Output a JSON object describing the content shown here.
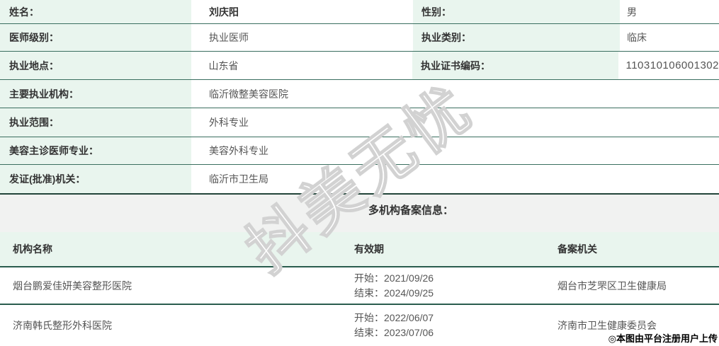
{
  "info": {
    "paired_rows": [
      {
        "label1": "姓名：",
        "value1": "刘庆阳",
        "label2": "性别：",
        "value2": "男"
      },
      {
        "label1": "医师级别：",
        "value1": "执业医师",
        "label2": "执业类别：",
        "value2": "临床"
      },
      {
        "label1": "执业地点：",
        "value1": "山东省",
        "label2": "执业证书编码：",
        "value2": "110310106001302"
      }
    ],
    "single_rows": [
      {
        "label": "主要执业机构：",
        "value": "临沂微整美容医院"
      },
      {
        "label": "执业范围：",
        "value": "外科专业"
      },
      {
        "label": "美容主诊医师专业：",
        "value": "美容外科专业"
      },
      {
        "label": "发证(批准)机关：",
        "value": "临沂市卫生局"
      }
    ]
  },
  "section": {
    "title": "多机构备案信息："
  },
  "records_table": {
    "headers": {
      "org": "机构名称",
      "validity": "有效期",
      "authority": "备案机关"
    },
    "rows": [
      {
        "org": "烟台鹏爱佳妍美容整形医院",
        "start": "开始：2021/09/26",
        "end": "结束：2024/09/25",
        "authority": "烟台市芝罘区卫生健康局"
      },
      {
        "org": "济南韩氏整形外科医院",
        "start": "开始：2022/06/07",
        "end": "结束：2023/07/06",
        "authority": "济南市卫生健康委员会"
      }
    ]
  },
  "watermarks": {
    "diagonal": "抖美无忧",
    "uploader": "◎本图由平台注册用户上传"
  },
  "colors": {
    "label_bg": "#e9f5ee",
    "band_bg": "#f1f2f1",
    "row_line": "#3a6e5f",
    "heavy_line": "#2a5c4e",
    "label_text": "#333333",
    "value_text": "#555555",
    "watermark_stroke": "#d2d2d2"
  }
}
